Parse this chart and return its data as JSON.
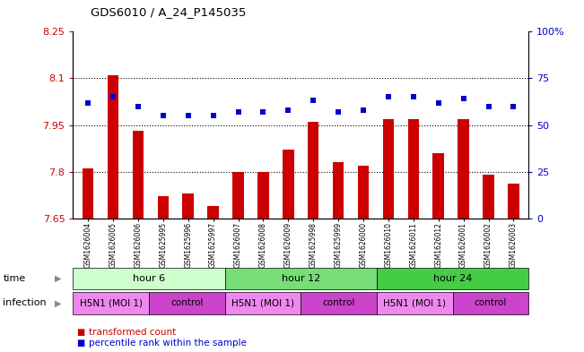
{
  "title": "GDS6010 / A_24_P145035",
  "samples": [
    "GSM1626004",
    "GSM1626005",
    "GSM1626006",
    "GSM1625995",
    "GSM1625996",
    "GSM1625997",
    "GSM1626007",
    "GSM1626008",
    "GSM1626009",
    "GSM1625998",
    "GSM1625999",
    "GSM1626000",
    "GSM1626010",
    "GSM1626011",
    "GSM1626012",
    "GSM1626001",
    "GSM1626002",
    "GSM1626003"
  ],
  "bar_values": [
    7.81,
    8.11,
    7.93,
    7.72,
    7.73,
    7.69,
    7.8,
    7.8,
    7.87,
    7.96,
    7.83,
    7.82,
    7.97,
    7.97,
    7.86,
    7.97,
    7.79,
    7.76
  ],
  "dot_values": [
    62,
    65,
    60,
    55,
    55,
    55,
    57,
    57,
    58,
    63,
    57,
    58,
    65,
    65,
    62,
    64,
    60,
    60
  ],
  "bar_color": "#cc0000",
  "dot_color": "#0000cc",
  "ylim_left": [
    7.65,
    8.25
  ],
  "ylim_right": [
    0,
    100
  ],
  "yticks_left": [
    7.65,
    7.8,
    7.95,
    8.1,
    8.25
  ],
  "yticks_right": [
    0,
    25,
    50,
    75,
    100
  ],
  "ytick_labels_left": [
    "7.65",
    "7.8",
    "7.95",
    "8.1",
    "8.25"
  ],
  "ytick_labels_right": [
    "0",
    "25",
    "50",
    "75",
    "100%"
  ],
  "grid_lines": [
    7.8,
    7.95,
    8.1
  ],
  "time_groups": [
    {
      "label": "hour 6",
      "start": 0,
      "end": 6,
      "color": "#ccffcc"
    },
    {
      "label": "hour 12",
      "start": 6,
      "end": 12,
      "color": "#77dd77"
    },
    {
      "label": "hour 24",
      "start": 12,
      "end": 18,
      "color": "#44cc44"
    }
  ],
  "inf_groups": [
    {
      "label": "H5N1 (MOI 1)",
      "start": 0,
      "end": 3,
      "color": "#ee88ee"
    },
    {
      "label": "control",
      "start": 3,
      "end": 6,
      "color": "#cc44cc"
    },
    {
      "label": "H5N1 (MOI 1)",
      "start": 6,
      "end": 9,
      "color": "#ee88ee"
    },
    {
      "label": "control",
      "start": 9,
      "end": 12,
      "color": "#cc44cc"
    },
    {
      "label": "H5N1 (MOI 1)",
      "start": 12,
      "end": 15,
      "color": "#ee88ee"
    },
    {
      "label": "control",
      "start": 15,
      "end": 18,
      "color": "#cc44cc"
    }
  ],
  "time_row_label": "time",
  "infection_row_label": "infection",
  "legend_bar": "transformed count",
  "legend_dot": "percentile rank within the sample"
}
